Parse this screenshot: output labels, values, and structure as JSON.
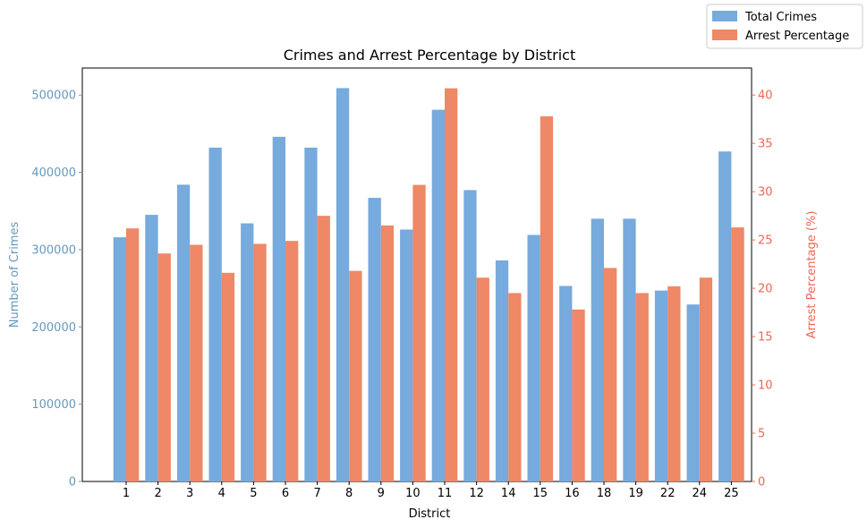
{
  "chart_data": {
    "type": "bar",
    "title": "Crimes and Arrest Percentage by District",
    "xlabel": "District",
    "ylabel_left": "Number of Crimes",
    "ylabel_right": "Arrest Percentage (%)",
    "categories": [
      "1",
      "2",
      "3",
      "4",
      "5",
      "6",
      "7",
      "8",
      "9",
      "10",
      "11",
      "12",
      "14",
      "15",
      "16",
      "18",
      "19",
      "22",
      "24",
      "25"
    ],
    "ylim_left": [
      0,
      535000
    ],
    "ylim_right": [
      0,
      42.8
    ],
    "yticks_left": [
      "0",
      "100000",
      "200000",
      "300000",
      "400000",
      "500000"
    ],
    "yticks_right": [
      "0",
      "5",
      "10",
      "15",
      "20",
      "25",
      "30",
      "35",
      "40"
    ],
    "legend_position": "top-right",
    "series": [
      {
        "name": "Total Crimes",
        "axis": "left",
        "color": "#77aadd",
        "values": [
          316000,
          345000,
          384000,
          432000,
          334000,
          446000,
          432000,
          509000,
          367000,
          326000,
          481000,
          377000,
          286000,
          319000,
          253000,
          340000,
          340000,
          247000,
          229000,
          427000
        ]
      },
      {
        "name": "Arrest Percentage",
        "axis": "right",
        "color": "#ee8866",
        "values": [
          26.2,
          23.6,
          24.5,
          21.6,
          24.6,
          24.9,
          27.5,
          21.8,
          26.5,
          30.7,
          40.7,
          21.1,
          19.5,
          37.8,
          17.8,
          22.1,
          19.5,
          20.2,
          21.1,
          26.3
        ]
      }
    ],
    "left_axis_color": "#6699bb",
    "right_axis_color": "#ee6655"
  }
}
